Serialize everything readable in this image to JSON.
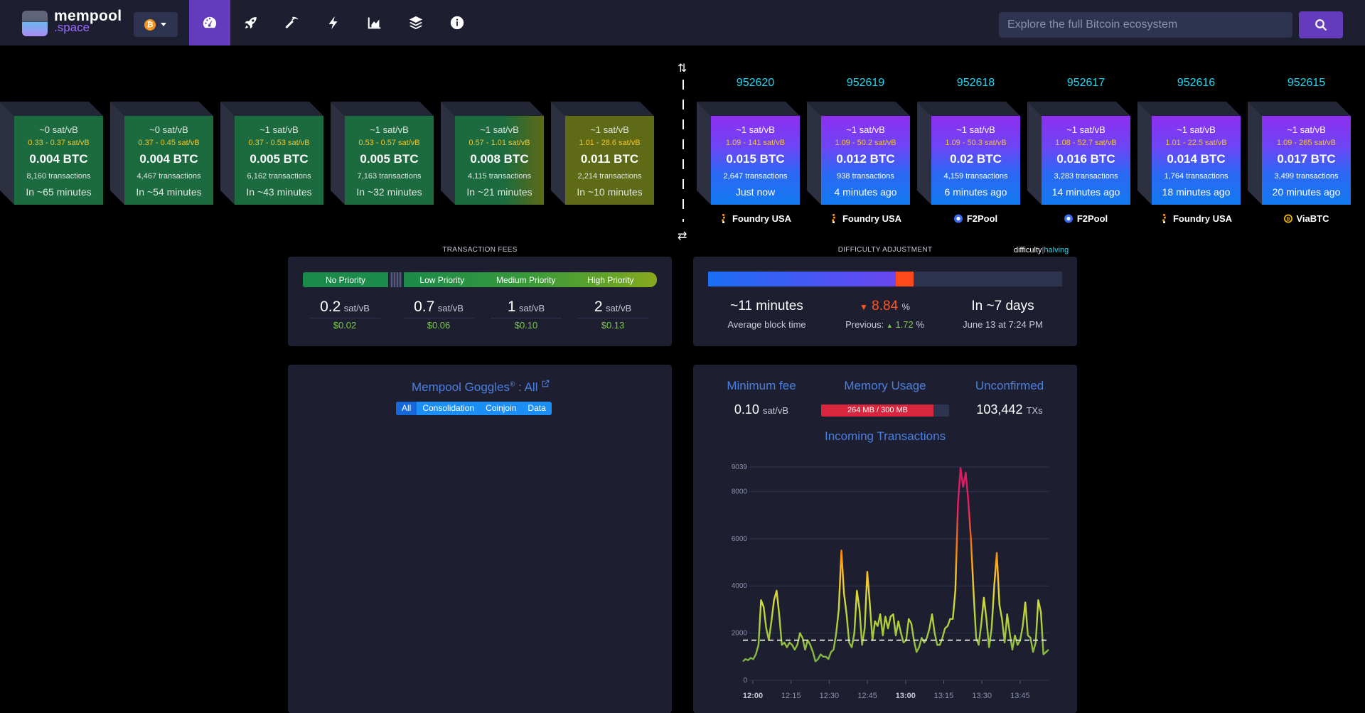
{
  "header": {
    "logo_line1": "mempool",
    "logo_line2": ".space",
    "network_icon": "bitcoin-icon",
    "nav_icons": [
      "dashboard-icon",
      "rocket-icon",
      "pickaxe-icon",
      "lightning-icon",
      "chart-icon",
      "layers-icon",
      "info-icon"
    ],
    "search_placeholder": "Explore the full Bitcoin ecosystem"
  },
  "pending_blocks": [
    {
      "fee": "~0 sat/vB",
      "range": "0.33 - 0.37 sat/vB",
      "btc": "0.004 BTC",
      "txs": "8,160 transactions",
      "eta": "In ~65 minutes",
      "color": "#1b6b3f"
    },
    {
      "fee": "~0 sat/vB",
      "range": "0.37 - 0.45 sat/vB",
      "btc": "0.004 BTC",
      "txs": "4,467 transactions",
      "eta": "In ~54 minutes",
      "color": "#1b6b3f"
    },
    {
      "fee": "~1 sat/vB",
      "range": "0.37 - 0.53 sat/vB",
      "btc": "0.005 BTC",
      "txs": "6,162 transactions",
      "eta": "In ~43 minutes",
      "color": "#1b6b3f"
    },
    {
      "fee": "~1 sat/vB",
      "range": "0.53 - 0.57 sat/vB",
      "btc": "0.005 BTC",
      "txs": "7,163 transactions",
      "eta": "In ~32 minutes",
      "color": "#1b6b3f"
    },
    {
      "fee": "~1 sat/vB",
      "range": "0.57 - 1.01 sat/vB",
      "btc": "0.008 BTC",
      "txs": "4,115 transactions",
      "eta": "In ~21 minutes",
      "color": "#3a6e2a"
    },
    {
      "fee": "~1 sat/vB",
      "range": "1.01 - 28.6 sat/vB",
      "btc": "0.011 BTC",
      "txs": "2,214 transactions",
      "eta": "In ~10 minutes",
      "color": "#5e6a15"
    }
  ],
  "mined_blocks": [
    {
      "height": "952620",
      "fee": "~1 sat/vB",
      "range": "1.09 - 141 sat/vB",
      "btc": "0.015 BTC",
      "txs": "2,647 transactions",
      "time": "Just now",
      "pool": "Foundry USA",
      "pool_icon": "foundry-icon"
    },
    {
      "height": "952619",
      "fee": "~1 sat/vB",
      "range": "1.09 - 50.2 sat/vB",
      "btc": "0.012 BTC",
      "txs": "938 transactions",
      "time": "4 minutes ago",
      "pool": "Foundry USA",
      "pool_icon": "foundry-icon"
    },
    {
      "height": "952618",
      "fee": "~1 sat/vB",
      "range": "1.09 - 50.3 sat/vB",
      "btc": "0.02 BTC",
      "txs": "4,159 transactions",
      "time": "6 minutes ago",
      "pool": "F2Pool",
      "pool_icon": "f2pool-icon"
    },
    {
      "height": "952617",
      "fee": "~1 sat/vB",
      "range": "1.08 - 52.7 sat/vB",
      "btc": "0.016 BTC",
      "txs": "3,283 transactions",
      "time": "14 minutes ago",
      "pool": "F2Pool",
      "pool_icon": "f2pool-icon"
    },
    {
      "height": "952616",
      "fee": "~1 sat/vB",
      "range": "1.01 - 22.5 sat/vB",
      "btc": "0.014 BTC",
      "txs": "1,764 transactions",
      "time": "18 minutes ago",
      "pool": "Foundry USA",
      "pool_icon": "foundry-icon"
    },
    {
      "height": "952615",
      "fee": "~1 sat/vB",
      "range": "1.09 - 265 sat/vB",
      "btc": "0.017 BTC",
      "txs": "3,499 transactions",
      "time": "20 minutes ago",
      "pool": "ViaBTC",
      "pool_icon": "viabtc-icon"
    }
  ],
  "fees": {
    "title": "TRANSACTION FEES",
    "labels": [
      "No Priority",
      "Low Priority",
      "Medium Priority",
      "High Priority"
    ],
    "values": [
      {
        "value": "0.2",
        "unit": "sat/vB",
        "usd": "$0.02"
      },
      {
        "value": "0.7",
        "unit": "sat/vB",
        "usd": "$0.06"
      },
      {
        "value": "1",
        "unit": "sat/vB",
        "usd": "$0.10"
      },
      {
        "value": "2",
        "unit": "sat/vB",
        "usd": "$0.13"
      }
    ]
  },
  "difficulty": {
    "title": "DIFFICULTY ADJUSTMENT",
    "toggle_difficulty": "difficulty",
    "toggle_sep": "|",
    "toggle_halving": "halving",
    "progress_mined": 0.53,
    "progress_ahead": 0.05,
    "avg_time": "~11 minutes",
    "avg_label": "Average block time",
    "change": "8.84",
    "change_unit": "%",
    "previous_label": "Previous:",
    "previous_value": "1.72",
    "previous_unit": "%",
    "eta": "In ~7 days",
    "eta_date": "June 13 at 7:24 PM",
    "colors": {
      "down": "#ff5722",
      "up": "#7cc84a"
    }
  },
  "goggles": {
    "title": "Mempool Goggles",
    "reg": "®",
    "suffix": " : All",
    "filters": [
      "All",
      "Consolidation",
      "Coinjoin",
      "Data"
    ],
    "active_filter": "All"
  },
  "mempool": {
    "min_fee_label": "Minimum fee",
    "min_fee_value": "0.10",
    "min_fee_unit": "sat/vB",
    "memory_label": "Memory Usage",
    "memory_value": "264 MB / 300 MB",
    "memory_fraction": 0.88,
    "unconfirmed_label": "Unconfirmed",
    "unconfirmed_value": "103,442",
    "unconfirmed_unit": "TXs"
  },
  "chart_data": {
    "type": "line",
    "title": "Incoming Transactions",
    "y_ticks": [
      "0",
      "2000",
      "4000",
      "6000",
      "8000",
      "9039"
    ],
    "x_ticks": [
      "12:00",
      "12:15",
      "12:30",
      "12:45",
      "13:00",
      "13:15",
      "13:30",
      "13:45"
    ],
    "ylim": [
      0,
      9039
    ],
    "threshold": 1700,
    "values": [
      800,
      900,
      850,
      950,
      900,
      1100,
      1500,
      3400,
      3100,
      2200,
      1700,
      2500,
      3400,
      3800,
      2800,
      1500,
      1600,
      1400,
      1600,
      1500,
      1300,
      1500,
      2000,
      1800,
      1300,
      1700,
      1500,
      1200,
      800,
      900,
      1100,
      1000,
      1000,
      900,
      1200,
      1300,
      2000,
      3000,
      5500,
      3700,
      2800,
      1600,
      1400,
      2000,
      3800,
      3000,
      1500,
      2200,
      4600,
      3200,
      1700,
      2500,
      2300,
      2800,
      1900,
      2700,
      2200,
      2700,
      2800,
      1900,
      2500,
      2000,
      1600,
      1700,
      2600,
      2400,
      1700,
      1200,
      1400,
      1800,
      1600,
      1800,
      2200,
      2800,
      2000,
      1500,
      1500,
      1800,
      2200,
      2300,
      2600,
      2600,
      3800,
      7500,
      9000,
      8200,
      8800,
      7600,
      6000,
      3800,
      1800,
      1500,
      2400,
      3500,
      2600,
      1400,
      2200,
      4000,
      5400,
      3200,
      2600,
      1600,
      2800,
      2000,
      1300,
      1900,
      1500,
      1700,
      2300,
      3300,
      1900,
      1800,
      1200,
      1600,
      3400,
      2900,
      1100,
      1200,
      1300
    ]
  }
}
